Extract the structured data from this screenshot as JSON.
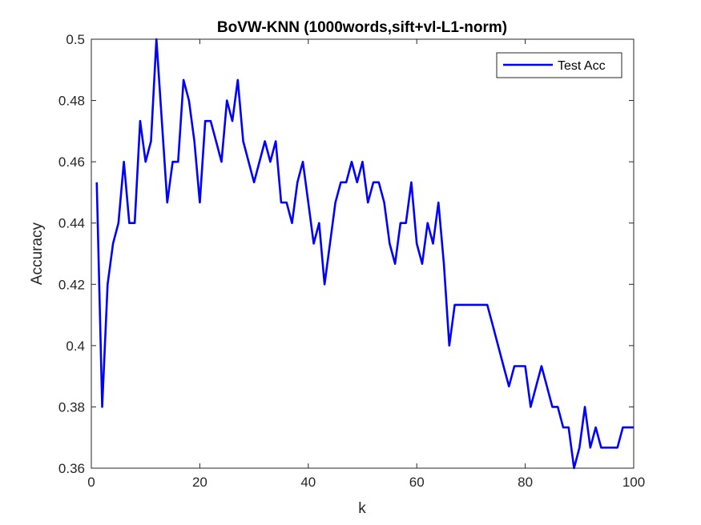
{
  "chart_data": {
    "type": "line",
    "title": "BoVW-KNN (1000words,sift+vl-L1-norm)",
    "xlabel": "k",
    "ylabel": "Accuracy",
    "xlim": [
      0,
      100
    ],
    "ylim": [
      0.36,
      0.5
    ],
    "xticks": [
      "0",
      "20",
      "40",
      "60",
      "80",
      "100"
    ],
    "yticks": [
      "0.36",
      "0.38",
      "0.4",
      "0.42",
      "0.44",
      "0.46",
      "0.48",
      "0.5"
    ],
    "grid": false,
    "legend_position": "top-right",
    "series": [
      {
        "name": "Test Acc",
        "color": "#0000ff",
        "x": [
          1,
          2,
          3,
          4,
          5,
          6,
          7,
          8,
          9,
          10,
          11,
          12,
          13,
          14,
          15,
          16,
          17,
          18,
          19,
          20,
          21,
          22,
          23,
          24,
          25,
          26,
          27,
          28,
          29,
          30,
          31,
          32,
          33,
          34,
          35,
          36,
          37,
          38,
          39,
          40,
          41,
          42,
          43,
          44,
          45,
          46,
          47,
          48,
          49,
          50,
          51,
          52,
          53,
          54,
          55,
          56,
          57,
          58,
          59,
          60,
          61,
          62,
          63,
          64,
          65,
          66,
          67,
          68,
          69,
          70,
          71,
          72,
          73,
          74,
          75,
          76,
          77,
          78,
          79,
          80,
          81,
          82,
          83,
          84,
          85,
          86,
          87,
          88,
          89,
          90,
          91,
          92,
          93,
          94,
          95,
          96,
          97,
          98,
          99,
          100
        ],
        "values": [
          0.4533,
          0.38,
          0.42,
          0.4333,
          0.44,
          0.46,
          0.44,
          0.44,
          0.4733,
          0.46,
          0.4667,
          0.5,
          0.4733,
          0.4467,
          0.46,
          0.46,
          0.4867,
          0.48,
          0.4667,
          0.4467,
          0.4733,
          0.4733,
          0.4667,
          0.46,
          0.48,
          0.4733,
          0.4867,
          0.4667,
          0.46,
          0.4533,
          0.46,
          0.4667,
          0.46,
          0.4667,
          0.4467,
          0.4467,
          0.44,
          0.4533,
          0.46,
          0.4467,
          0.4333,
          0.44,
          0.42,
          0.4333,
          0.4467,
          0.4533,
          0.4533,
          0.46,
          0.4533,
          0.46,
          0.4467,
          0.4533,
          0.4533,
          0.4467,
          0.4333,
          0.4267,
          0.44,
          0.44,
          0.4533,
          0.4333,
          0.4267,
          0.44,
          0.4333,
          0.4467,
          0.4267,
          0.4,
          0.4133,
          0.4133,
          0.4133,
          0.4133,
          0.4133,
          0.4133,
          0.4133,
          0.4067,
          0.4,
          0.3933,
          0.3867,
          0.3933,
          0.3933,
          0.3933,
          0.38,
          0.3867,
          0.3933,
          0.3867,
          0.38,
          0.38,
          0.3733,
          0.3733,
          0.36,
          0.3667,
          0.38,
          0.3667,
          0.3733,
          0.3667,
          0.3667,
          0.3667,
          0.3667,
          0.3733,
          0.3733,
          0.3733
        ]
      }
    ]
  }
}
